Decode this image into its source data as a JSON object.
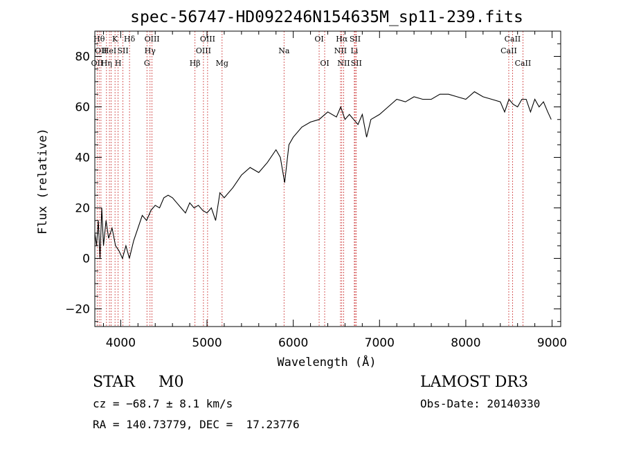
{
  "chart_data": {
    "type": "line",
    "title": "spec-56747-HD092246N154635M_sp11-239.fits",
    "xlabel": "Wavelength (Å)",
    "ylabel": "Flux (relative)",
    "xlim": [
      3700,
      9100
    ],
    "ylim": [
      -27,
      90
    ],
    "xticks": [
      4000,
      5000,
      6000,
      7000,
      8000,
      9000
    ],
    "yticks": [
      -20,
      0,
      20,
      40,
      60,
      80
    ],
    "xtick_labels": [
      "4000",
      "5000",
      "6000",
      "7000",
      "8000",
      "9000"
    ],
    "ytick_labels": [
      "−20",
      "0",
      "20",
      "40",
      "60",
      "80"
    ],
    "grid": false,
    "line_color": "#000000",
    "marker_color": "#cc3333",
    "series": [
      {
        "x": [
          3700,
          3720,
          3740,
          3760,
          3780,
          3800,
          3830,
          3860,
          3900,
          3940,
          3980,
          4020,
          4060,
          4100,
          4150,
          4200,
          4250,
          4300,
          4350,
          4400,
          4450,
          4500,
          4550,
          4600,
          4650,
          4700,
          4750,
          4800,
          4850,
          4900,
          4950,
          5000,
          5050,
          5100,
          5150,
          5200,
          5300,
          5400,
          5500,
          5600,
          5700,
          5800,
          5850,
          5900,
          5950,
          6000,
          6100,
          6200,
          6300,
          6400,
          6500,
          6550,
          6600,
          6650,
          6700,
          6750,
          6800,
          6850,
          6900,
          7000,
          7100,
          7200,
          7300,
          7400,
          7500,
          7600,
          7700,
          7800,
          7900,
          8000,
          8100,
          8200,
          8300,
          8400,
          8450,
          8500,
          8550,
          8600,
          8650,
          8700,
          8750,
          8800,
          8850,
          8900,
          8950,
          8990
        ],
        "y": [
          10,
          5,
          15,
          0,
          20,
          5,
          15,
          8,
          12,
          5,
          3,
          0,
          5,
          0,
          7,
          12,
          17,
          15,
          19,
          21,
          20,
          24,
          25,
          24,
          22,
          20,
          18,
          22,
          20,
          21,
          19,
          18,
          20,
          15,
          26,
          24,
          28,
          33,
          36,
          34,
          38,
          43,
          40,
          30,
          45,
          48,
          52,
          54,
          55,
          58,
          56,
          60,
          55,
          57,
          55,
          53,
          57,
          48,
          55,
          57,
          60,
          63,
          62,
          64,
          63,
          63,
          65,
          65,
          64,
          63,
          66,
          64,
          63,
          62,
          58,
          63,
          61,
          60,
          63,
          63,
          58,
          63,
          60,
          62,
          58,
          55
        ]
      }
    ],
    "line_markers": [
      {
        "wavelength": 3727,
        "label": "OII",
        "row": 2
      },
      {
        "wavelength": 3750,
        "label": "Hθ",
        "row": 0
      },
      {
        "wavelength": 3771,
        "label": "OII",
        "row": 1
      },
      {
        "wavelength": 3835,
        "label": "Hη",
        "row": 2
      },
      {
        "wavelength": 3869,
        "label": "HeI",
        "row": 1
      },
      {
        "wavelength": 3889,
        "label": "",
        "row": -1
      },
      {
        "wavelength": 3934,
        "label": "K",
        "row": 0
      },
      {
        "wavelength": 3970,
        "label": "H",
        "row": 2
      },
      {
        "wavelength": 4026,
        "label": "SII",
        "row": 1
      },
      {
        "wavelength": 4102,
        "label": "Hδ",
        "row": 0
      },
      {
        "wavelength": 4304,
        "label": "G",
        "row": 2
      },
      {
        "wavelength": 4340,
        "label": "Hγ",
        "row": 1
      },
      {
        "wavelength": 4363,
        "label": "OIII",
        "row": 0
      },
      {
        "wavelength": 4861,
        "label": "Hβ",
        "row": 2
      },
      {
        "wavelength": 4959,
        "label": "OIII",
        "row": 1
      },
      {
        "wavelength": 5007,
        "label": "OIII",
        "row": 0
      },
      {
        "wavelength": 5175,
        "label": "Mg",
        "row": 2
      },
      {
        "wavelength": 5893,
        "label": "Na",
        "row": 1
      },
      {
        "wavelength": 6300,
        "label": "OI",
        "row": 0
      },
      {
        "wavelength": 6364,
        "label": "OI",
        "row": 2
      },
      {
        "wavelength": 6548,
        "label": "NII",
        "row": 1
      },
      {
        "wavelength": 6563,
        "label": "Hα",
        "row": 0
      },
      {
        "wavelength": 6584,
        "label": "NII",
        "row": 2
      },
      {
        "wavelength": 6708,
        "label": "Li",
        "row": 1
      },
      {
        "wavelength": 6717,
        "label": "SII",
        "row": 0
      },
      {
        "wavelength": 6731,
        "label": "SII",
        "row": 2
      },
      {
        "wavelength": 8498,
        "label": "CaII",
        "row": 1
      },
      {
        "wavelength": 8542,
        "label": "CaII",
        "row": 0
      },
      {
        "wavelength": 8662,
        "label": "CaII",
        "row": 2
      }
    ]
  },
  "info": {
    "object_class": "STAR",
    "subclass": "M0",
    "survey": "LAMOST DR3",
    "velocity": "cz = −68.7 ± 8.1 km/s",
    "obs_date": "Obs-Date: 20140330",
    "coords": "RA = 140.73779, DEC =  17.23776"
  }
}
